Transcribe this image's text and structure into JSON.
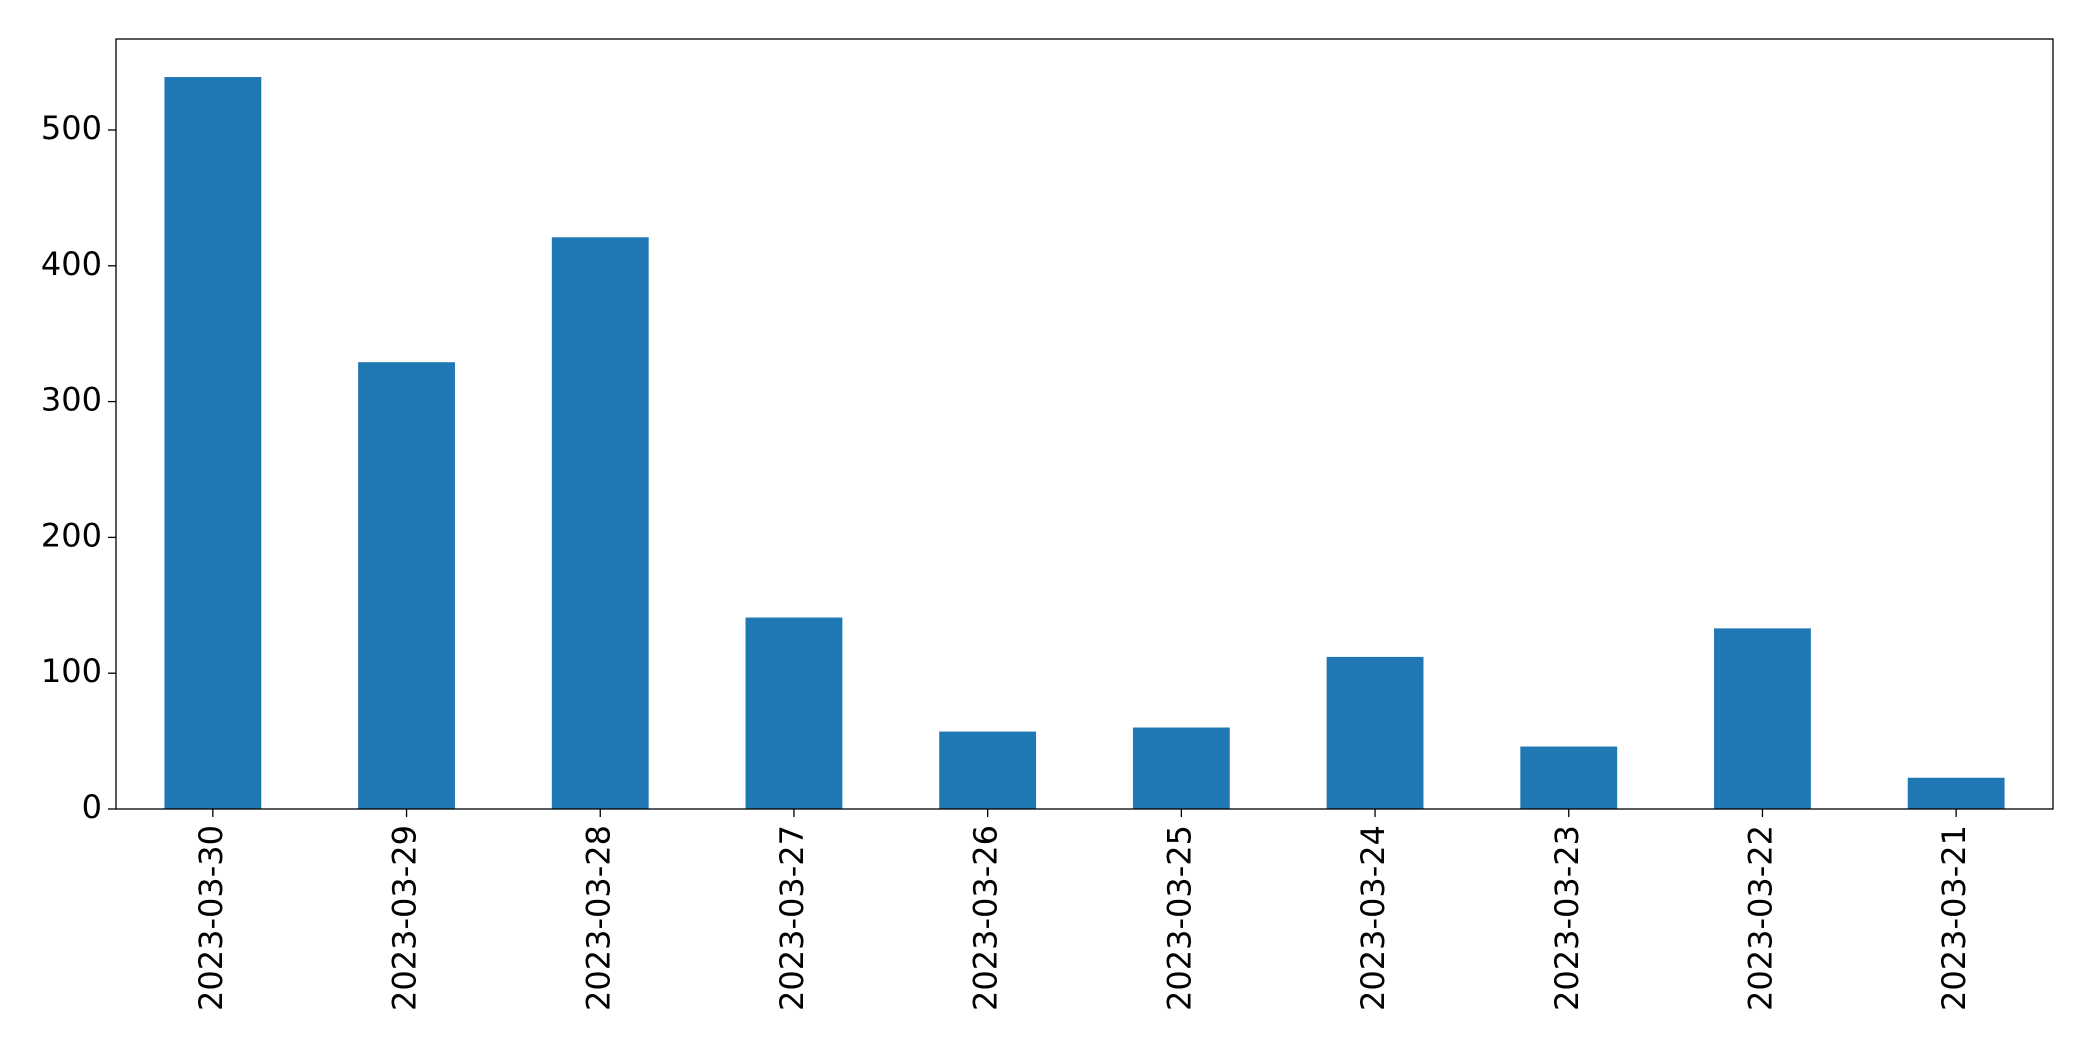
{
  "chart_data": {
    "type": "bar",
    "categories": [
      "2023-03-30",
      "2023-03-29",
      "2023-03-28",
      "2023-03-27",
      "2023-03-26",
      "2023-03-25",
      "2023-03-24",
      "2023-03-23",
      "2023-03-22",
      "2023-03-21"
    ],
    "values": [
      539,
      329,
      421,
      141,
      57,
      60,
      112,
      46,
      133,
      23
    ],
    "color": "#1f77b4",
    "ylim": [
      0,
      567
    ],
    "yticks": [
      0,
      100,
      200,
      300,
      400,
      500
    ],
    "grid": false
  }
}
